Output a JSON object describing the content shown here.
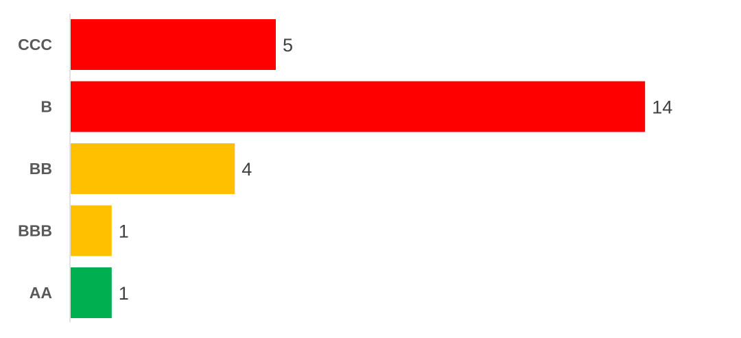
{
  "chart_data": {
    "type": "bar",
    "orientation": "horizontal",
    "categories": [
      "CCC",
      "B",
      "BB",
      "BBB",
      "AA"
    ],
    "values": [
      5,
      14,
      4,
      1,
      1
    ],
    "colors": [
      "#FF0000",
      "#FF0000",
      "#FFC000",
      "#FFC000",
      "#00B050"
    ],
    "data_labels": [
      "5",
      "14",
      "4",
      "1",
      "1"
    ],
    "title": "",
    "xlabel": "",
    "ylabel": "",
    "xlim": [
      0,
      14
    ],
    "grid": false,
    "legend": "none"
  }
}
